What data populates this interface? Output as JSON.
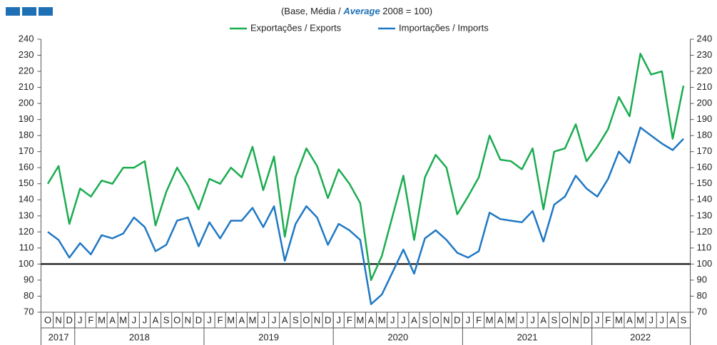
{
  "chart_data": {
    "type": "line",
    "subtitle_parts": [
      "(Base, Média / ",
      "Average",
      " 2008 = 100)"
    ],
    "categories": [
      "O",
      "N",
      "D",
      "J",
      "F",
      "M",
      "A",
      "M",
      "J",
      "J",
      "A",
      "S",
      "O",
      "N",
      "D",
      "J",
      "F",
      "M",
      "A",
      "M",
      "J",
      "J",
      "A",
      "S",
      "O",
      "N",
      "D",
      "J",
      "F",
      "M",
      "A",
      "M",
      "J",
      "J",
      "A",
      "S",
      "O",
      "N",
      "D",
      "J",
      "F",
      "M",
      "A",
      "M",
      "J",
      "J",
      "A",
      "S",
      "O",
      "N",
      "D",
      "J",
      "F",
      "M",
      "A",
      "M",
      "J",
      "J",
      "A",
      "S"
    ],
    "year_groups": [
      {
        "label": "2017",
        "span": 3
      },
      {
        "label": "2018",
        "span": 12
      },
      {
        "label": "2019",
        "span": 12
      },
      {
        "label": "2020",
        "span": 12
      },
      {
        "label": "2021",
        "span": 12
      },
      {
        "label": "2022",
        "span": 9
      }
    ],
    "series": [
      {
        "name": "Exportações / Exports",
        "color": "#1aac4f",
        "values": [
          150,
          161,
          125,
          147,
          142,
          152,
          150,
          160,
          160,
          164,
          124,
          145,
          160,
          149,
          134,
          153,
          150,
          160,
          154,
          173,
          146,
          167,
          117,
          154,
          172,
          161,
          141,
          159,
          150,
          138,
          90,
          105,
          130,
          155,
          115,
          154,
          168,
          160,
          131,
          142,
          154,
          180,
          165,
          164,
          159,
          172,
          134,
          170,
          172,
          187,
          164,
          173,
          184,
          204,
          192,
          231,
          218,
          220,
          178,
          211
        ]
      },
      {
        "name": "Importações / Imports",
        "color": "#1f78c4",
        "values": [
          120,
          115,
          104,
          113,
          106,
          118,
          116,
          119,
          129,
          123,
          108,
          112,
          127,
          129,
          111,
          126,
          116,
          127,
          127,
          135,
          123,
          136,
          102,
          125,
          136,
          129,
          112,
          125,
          121,
          115,
          75,
          81,
          95,
          109,
          94,
          116,
          121,
          115,
          107,
          104,
          108,
          132,
          128,
          127,
          126,
          133,
          114,
          137,
          142,
          155,
          147,
          142,
          153,
          170,
          163,
          185,
          180,
          175,
          171,
          178
        ]
      }
    ],
    "reference_line": {
      "value": 100,
      "color": "#000000"
    },
    "ylim": [
      70,
      240
    ],
    "yticks": [
      70,
      80,
      90,
      100,
      110,
      120,
      130,
      140,
      150,
      160,
      170,
      180,
      190,
      200,
      210,
      220,
      230,
      240
    ],
    "y2lim": [
      70,
      240
    ],
    "y2ticks": [
      70,
      80,
      90,
      100,
      110,
      120,
      130,
      140,
      150,
      160,
      170,
      180,
      190,
      200,
      210,
      220,
      230,
      240
    ]
  }
}
